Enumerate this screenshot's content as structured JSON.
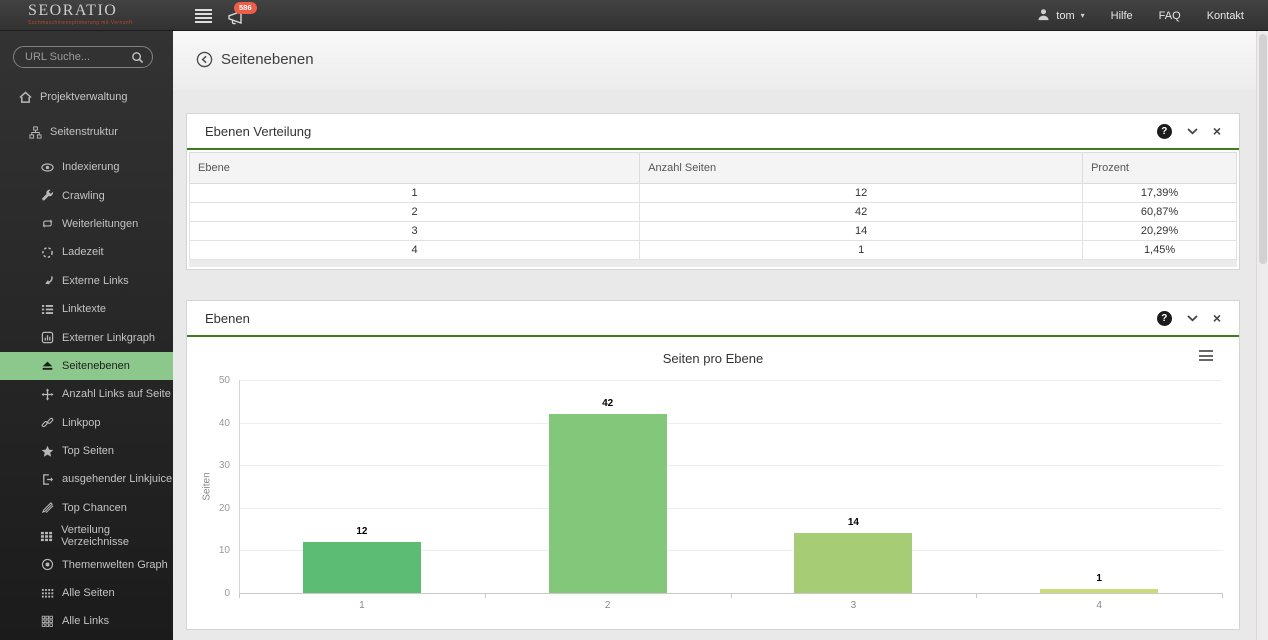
{
  "topbar": {
    "logo_title": "SEORATIO",
    "logo_tagline": "Suchmaschinenoptimierung mit Vernunft",
    "notification_count": "586",
    "username": "tom",
    "nav_links": [
      "Hilfe",
      "FAQ",
      "Kontakt"
    ]
  },
  "icons": {
    "help": "?",
    "close": "×",
    "caret_down": "▾"
  },
  "sidebar": {
    "search_placeholder": "URL Suche...",
    "top_items": [
      {
        "label": "Projektverwaltung",
        "icon": "home-icon",
        "level": 1
      },
      {
        "label": "Seitenstruktur",
        "icon": "sitemap-icon",
        "level": 2
      }
    ],
    "items": [
      {
        "label": "Indexierung",
        "icon": "eye-icon",
        "active": false
      },
      {
        "label": "Crawling",
        "icon": "wrench-icon",
        "active": false
      },
      {
        "label": "Weiterleitungen",
        "icon": "repeat-icon",
        "active": false
      },
      {
        "label": "Ladezeit",
        "icon": "spinner-icon",
        "active": false
      },
      {
        "label": "Externe Links",
        "icon": "curved-arrow-icon",
        "active": false
      },
      {
        "label": "Linktexte",
        "icon": "list-icon",
        "active": false
      },
      {
        "label": "Externer Linkgraph",
        "icon": "chart-doc-icon",
        "active": false
      },
      {
        "label": "Seitenebenen",
        "icon": "eject-icon",
        "active": true
      },
      {
        "label": "Anzahl Links auf Seite",
        "icon": "move-icon",
        "active": false
      },
      {
        "label": "Linkpop",
        "icon": "link-icon",
        "active": false
      },
      {
        "label": "Top Seiten",
        "icon": "star-icon",
        "active": false
      },
      {
        "label": "ausgehender Linkjuice",
        "icon": "sign-out-icon",
        "active": false
      },
      {
        "label": "Top Chancen",
        "icon": "pencil-icon",
        "active": false
      },
      {
        "label": "Verteilung Verzeichnisse",
        "icon": "table-icon",
        "active": false
      },
      {
        "label": "Themenwelten Graph",
        "icon": "target-icon",
        "active": false
      },
      {
        "label": "Alle Seiten",
        "icon": "grid-dots-icon",
        "active": false
      },
      {
        "label": "Alle Links",
        "icon": "grid-squares-icon",
        "active": false
      }
    ]
  },
  "page": {
    "title": "Seitenebenen"
  },
  "panels": [
    {
      "title": "Ebenen Verteilung"
    },
    {
      "title": "Ebenen"
    }
  ],
  "table": {
    "headers": [
      "Ebene",
      "Anzahl Seiten",
      "Prozent"
    ],
    "rows": [
      [
        "1",
        "12",
        "17,39%"
      ],
      [
        "2",
        "42",
        "60,87%"
      ],
      [
        "3",
        "14",
        "20,29%"
      ],
      [
        "4",
        "1",
        "1,45%"
      ]
    ]
  },
  "chart_data": {
    "type": "bar",
    "title": "Seiten pro Ebene",
    "categories": [
      "1",
      "2",
      "3",
      "4"
    ],
    "values": [
      12,
      42,
      14,
      1
    ],
    "xlabel": "",
    "ylabel": "Seiten",
    "ylim": [
      0,
      50
    ],
    "yticks": [
      0,
      10,
      20,
      30,
      40,
      50
    ],
    "bar_colors": [
      "#5cbc73",
      "#83c77b",
      "#a6cc75",
      "#cbda7a"
    ],
    "grid": true,
    "legend": false
  },
  "colors": {
    "active_item_bg": "#8cc78c",
    "panel_header_line": "#3d7c1f",
    "badge": "#ed5e4a",
    "topbar_bg": "#383838",
    "sidebar_bg": "#282828"
  }
}
